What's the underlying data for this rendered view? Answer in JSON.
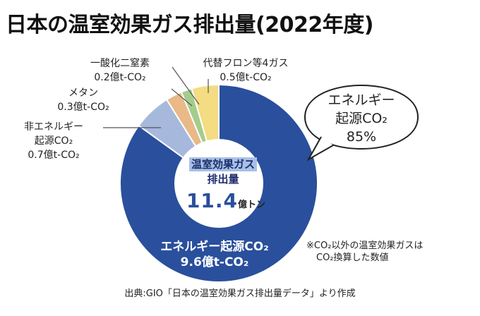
{
  "title": "日本の温室効果ガス排出量(2022年度)",
  "center": {
    "label_line1": "温室効果ガス",
    "label_line2": "排出量",
    "value": "11.4",
    "unit": "億トン"
  },
  "note": {
    "line1": "※CO₂以外の温室効果ガスは",
    "line2": "CO₂換算した数値"
  },
  "source": "出典:GIO「日本の温室効果ガス排出量データ」より作成",
  "colors": {
    "energy": "#2a4f9c",
    "nonenergy": "#a6b9dc",
    "methane": "#e9b988",
    "n2o": "#a5cc8c",
    "fgas": "#f3dc82"
  },
  "chart_data": {
    "type": "pie",
    "title": "日本の温室効果ガス排出量(2022年度)",
    "unit": "億t-CO₂",
    "total": 11.4,
    "slices": [
      {
        "key": "energy",
        "name": "エネルギー起源CO₂",
        "value": 9.6,
        "label_line1": "エネルギー起源CO₂",
        "label_line2": "9.6億t-CO₂",
        "share_line1": "エネルギー",
        "share_line2": "起源CO₂",
        "share_line3": "85%"
      },
      {
        "key": "nonenergy",
        "name": "非エネルギー起源CO₂",
        "value": 0.7,
        "label_line1": "非エネルギー",
        "label_line2": "起源CO₂",
        "label_line3": "0.7億t-CO₂"
      },
      {
        "key": "methane",
        "name": "メタン",
        "value": 0.3,
        "label_line1": "メタン",
        "label_line2": "0.3億t-CO₂"
      },
      {
        "key": "n2o",
        "name": "一酸化二窒素",
        "value": 0.2,
        "label_line1": "一酸化二窒素",
        "label_line2": "0.2億t-CO₂"
      },
      {
        "key": "fgas",
        "name": "代替フロン等4ガス",
        "value": 0.5,
        "label_line1": "代替フロン等4ガス",
        "label_line2": "0.5億t-CO₂"
      }
    ]
  }
}
